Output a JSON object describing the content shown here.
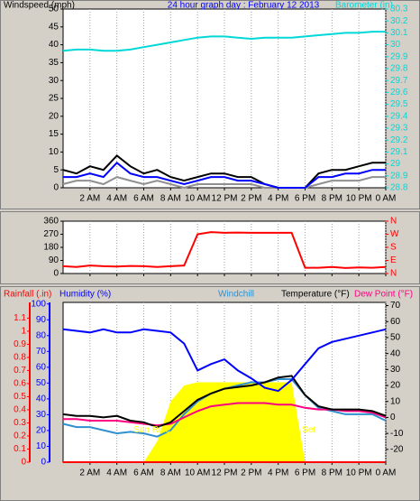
{
  "chart_data": [
    {
      "type": "line",
      "title": "24 hour graph day : February 12 2013",
      "ylabel": "Windspeed (mph)",
      "y2label": "Barometer (in)",
      "title_color": "#0000ff",
      "ycolor": "#000000",
      "y2color": "#00d8d8",
      "grid": "x",
      "x": [
        0,
        1,
        2,
        3,
        4,
        5,
        6,
        7,
        8,
        9,
        10,
        11,
        12,
        13,
        14,
        15,
        16,
        17,
        18,
        19,
        20,
        21,
        22,
        23,
        24
      ],
      "xlim": [
        0,
        24
      ],
      "xticks": [
        {
          "value": 2,
          "label": "2 AM"
        },
        {
          "value": 4,
          "label": "4 AM"
        },
        {
          "value": 6,
          "label": "6 AM"
        },
        {
          "value": 8,
          "label": "8 AM"
        },
        {
          "value": 10,
          "label": "10 AM"
        },
        {
          "value": 12,
          "label": "12 PM"
        },
        {
          "value": 14,
          "label": "2 PM"
        },
        {
          "value": 16,
          "label": "4 PM"
        },
        {
          "value": 18,
          "label": "6 PM"
        },
        {
          "value": 20,
          "label": "8 PM"
        },
        {
          "value": 22,
          "label": "10 PM"
        },
        {
          "value": 24,
          "label": "0 AM"
        }
      ],
      "ylim": [
        0,
        50
      ],
      "yticks": [
        0,
        5,
        10,
        15,
        20,
        25,
        30,
        35,
        40,
        45,
        50
      ],
      "y2lim": [
        28.8,
        30.3
      ],
      "y2ticks": [
        28.8,
        28.9,
        29,
        29.1,
        29.2,
        29.3,
        29.4,
        29.5,
        29.6,
        29.7,
        29.8,
        29.9,
        30,
        30.1,
        30.2,
        30.3
      ],
      "series": [
        {
          "color": "#909090",
          "values": [
            1,
            2,
            2,
            1,
            3,
            2,
            1,
            2,
            1,
            0,
            1,
            1,
            1,
            1,
            1,
            0,
            0,
            0,
            0,
            1,
            2,
            2,
            2,
            3,
            3
          ]
        },
        {
          "color": "#000000",
          "values": [
            5,
            4,
            6,
            5,
            9,
            6,
            4,
            5,
            3,
            2,
            3,
            4,
            4,
            3,
            3,
            1,
            0,
            0,
            0,
            4,
            5,
            5,
            6,
            7,
            7
          ]
        },
        {
          "color": "#0000ff",
          "values": [
            3,
            3,
            4,
            3,
            7,
            4,
            3,
            3,
            2,
            1,
            2,
            3,
            3,
            2,
            2,
            1,
            0,
            0,
            0,
            3,
            3,
            4,
            4,
            5,
            5
          ]
        },
        {
          "color": "#00d8d8",
          "axis": "y2",
          "values": [
            29.95,
            29.96,
            29.96,
            29.95,
            29.95,
            29.96,
            29.98,
            30.0,
            30.02,
            30.04,
            30.06,
            30.07,
            30.07,
            30.06,
            30.05,
            30.06,
            30.06,
            30.06,
            30.07,
            30.08,
            30.09,
            30.1,
            30.1,
            30.11,
            30.11
          ]
        }
      ]
    },
    {
      "type": "line",
      "ycolor": "#000000",
      "y2color": "#ff0000",
      "grid": "x",
      "x": [
        0,
        1,
        2,
        3,
        4,
        5,
        6,
        7,
        8,
        9,
        10,
        11,
        12,
        13,
        14,
        15,
        16,
        17,
        18,
        19,
        20,
        21,
        22,
        23,
        24
      ],
      "xlim": [
        0,
        24
      ],
      "xticks": [
        2,
        4,
        6,
        8,
        10,
        12,
        14,
        16,
        18,
        20,
        22,
        24
      ],
      "ylim": [
        0,
        360
      ],
      "yticks": [
        0,
        90,
        180,
        270,
        360
      ],
      "y2lim": [
        0,
        360
      ],
      "y2ticks": [
        {
          "value": 360,
          "label": "N"
        },
        {
          "value": 270,
          "label": "W"
        },
        {
          "value": 180,
          "label": "S"
        },
        {
          "value": 90,
          "label": "E"
        },
        {
          "value": 0,
          "label": "N"
        }
      ],
      "series": [
        {
          "color": "#ff0000",
          "values": [
            50,
            45,
            55,
            50,
            48,
            52,
            50,
            45,
            50,
            55,
            270,
            285,
            280,
            282,
            280,
            280,
            280,
            280,
            40,
            40,
            45,
            38,
            42,
            40,
            45
          ]
        }
      ]
    },
    {
      "type": "line",
      "headers": [
        {
          "text": "Rainfall (.in)",
          "color": "#ff0000"
        },
        {
          "text": "Humidity (%)",
          "color": "#0000ff"
        },
        {
          "text": "Windchill",
          "color": "#3090d0"
        },
        {
          "text": "Temperature (°F)",
          "color": "#000000"
        },
        {
          "text": "Dew Point (°F)",
          "color": "#ff0080"
        }
      ],
      "ycolor": "#0000ff",
      "y2color": "#000000",
      "y3color": "#ff0000",
      "grid": "x",
      "x": [
        0,
        1,
        2,
        3,
        4,
        5,
        6,
        7,
        8,
        9,
        10,
        11,
        12,
        13,
        14,
        15,
        16,
        17,
        18,
        19,
        20,
        21,
        22,
        23,
        24
      ],
      "xlim": [
        0,
        24
      ],
      "xticks": [
        {
          "value": 2,
          "label": "2 AM"
        },
        {
          "value": 4,
          "label": "4 AM"
        },
        {
          "value": 6,
          "label": "6 AM"
        },
        {
          "value": 8,
          "label": "8 AM"
        },
        {
          "value": 10,
          "label": "10 AM"
        },
        {
          "value": 12,
          "label": "12 PM"
        },
        {
          "value": 14,
          "label": "2 PM"
        },
        {
          "value": 16,
          "label": "4 PM"
        },
        {
          "value": 18,
          "label": "6 PM"
        },
        {
          "value": 20,
          "label": "8 PM"
        },
        {
          "value": 22,
          "label": "10 PM"
        },
        {
          "value": 24,
          "label": "0 AM"
        }
      ],
      "ylim": [
        0,
        101
      ],
      "yticks": [
        0,
        10,
        20,
        30,
        40,
        50,
        60,
        70,
        80,
        90,
        100
      ],
      "y2lim": [
        -28,
        72
      ],
      "y2ticks": [
        -20,
        -10,
        0,
        10,
        20,
        30,
        40,
        50,
        60,
        70
      ],
      "y3lim": [
        0,
        1.22
      ],
      "y3ticks": [
        0,
        0.1,
        0.2,
        0.3,
        0.4,
        0.5,
        0.6,
        0.7,
        0.8,
        0.9,
        1,
        1.1
      ],
      "annotations": [
        {
          "text": "Sun Rise",
          "x": 6.6,
          "y": -8
        },
        {
          "text": "Sun Set",
          "x": 17.6,
          "y": -8
        }
      ],
      "annotation_color": "#ffff00",
      "series": [
        {
          "color": "#ffff00",
          "axis": "y2",
          "area": true,
          "values": [
            -28,
            -28,
            -28,
            -28,
            -28,
            -28,
            -28,
            -15,
            10,
            20,
            22,
            22,
            22,
            22,
            22,
            22,
            22,
            22,
            -28,
            -28,
            -28,
            -28,
            -28,
            -28,
            -28
          ]
        },
        {
          "color": "#ff0000",
          "axis": "y3",
          "values": [
            0,
            0,
            0,
            0,
            0,
            0,
            0,
            0,
            0,
            0,
            0,
            0,
            0,
            0,
            0,
            0,
            0,
            0,
            0,
            0,
            0,
            0,
            0,
            0,
            0
          ]
        },
        {
          "color": "#3090d0",
          "axis": "y2",
          "values": [
            -4,
            -6,
            -6,
            -8,
            -10,
            -9,
            -10,
            -12,
            -8,
            2,
            10,
            15,
            18,
            20,
            22,
            22,
            24,
            24,
            14,
            6,
            4,
            2,
            2,
            2,
            -2
          ]
        },
        {
          "color": "#ff0080",
          "axis": "y2",
          "values": [
            -1,
            -1,
            -2,
            -2,
            -2,
            -3,
            -4,
            -5,
            -4,
            0,
            4,
            7,
            8,
            9,
            9,
            9,
            8,
            8,
            6,
            5,
            5,
            4,
            4,
            3,
            0
          ]
        },
        {
          "color": "#000000",
          "axis": "y2",
          "values": [
            2,
            1,
            1,
            0,
            1,
            -2,
            -3,
            -6,
            -3,
            4,
            11,
            15,
            18,
            19,
            20,
            22,
            25,
            26,
            14,
            7,
            5,
            5,
            5,
            4,
            1
          ]
        },
        {
          "color": "#0000ff",
          "axis": "y",
          "values": [
            84,
            83,
            82,
            84,
            82,
            82,
            84,
            83,
            82,
            75,
            58,
            62,
            65,
            58,
            53,
            47,
            45,
            52,
            62,
            72,
            76,
            78,
            80,
            82,
            84
          ]
        }
      ]
    }
  ]
}
